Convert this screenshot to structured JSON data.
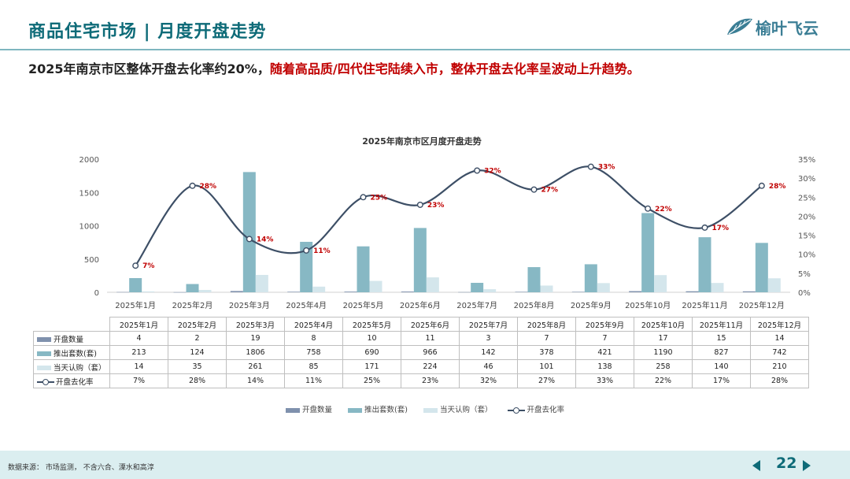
{
  "header": {
    "title": "商品住宅市场 | 月度开盘走势",
    "logo_text": "榆叶飞云",
    "subtitle_black": "2025年南京市区整体开盘去化率约20%，",
    "subtitle_red": "随着高品质/四代住宅陆续入市，整体开盘去化率呈波动上升趋势。"
  },
  "colors": {
    "title": "#0e6b78",
    "highlight": "#c00000",
    "open_count": "#7f91ad",
    "supply": "#87b8c4",
    "subscribed": "#d4e6ec",
    "rate_line": "#3d4f66",
    "rate_label": "#c00000"
  },
  "chart_data": {
    "type": "bar",
    "title": "2025年南京市区月度开盘走势",
    "categories": [
      "2025年1月",
      "2025年2月",
      "2025年3月",
      "2025年4月",
      "2025年5月",
      "2025年6月",
      "2025年7月",
      "2025年8月",
      "2025年9月",
      "2025年10月",
      "2025年11月",
      "2025年12月"
    ],
    "series": [
      {
        "name": "开盘数量",
        "type": "bar",
        "axis": "left",
        "values": [
          4,
          2,
          19,
          8,
          10,
          11,
          3,
          7,
          7,
          17,
          15,
          14
        ]
      },
      {
        "name": "推出套数(套)",
        "type": "bar",
        "axis": "left",
        "values": [
          213,
          124,
          1806,
          758,
          690,
          966,
          142,
          378,
          421,
          1190,
          827,
          742
        ]
      },
      {
        "name": "当天认购（套）",
        "type": "bar",
        "axis": "left",
        "values": [
          14,
          35,
          261,
          85,
          171,
          224,
          46,
          101,
          138,
          258,
          140,
          210
        ]
      },
      {
        "name": "开盘去化率",
        "type": "line",
        "axis": "right",
        "values": [
          7,
          28,
          14,
          11,
          25,
          23,
          32,
          27,
          33,
          22,
          17,
          28
        ],
        "labels": [
          "7%",
          "28%",
          "14%",
          "11%",
          "25%",
          "23%",
          "32%",
          "27%",
          "33%",
          "22%",
          "17%",
          "28%"
        ]
      }
    ],
    "y_left": {
      "ticks": [
        "0",
        "500",
        "1000",
        "1500",
        "2000"
      ],
      "ylim": [
        0,
        2000
      ]
    },
    "y_right": {
      "ticks": [
        "0%",
        "5%",
        "10%",
        "15%",
        "20%",
        "25%",
        "30%",
        "35%"
      ],
      "ylim": [
        0,
        35
      ]
    },
    "grid": false,
    "legend": "bottom"
  },
  "table": {
    "rows": [
      {
        "label": "开盘数量",
        "values": [
          "4",
          "2",
          "19",
          "8",
          "10",
          "11",
          "3",
          "7",
          "7",
          "17",
          "15",
          "14"
        ]
      },
      {
        "label": "推出套数(套)",
        "values": [
          "213",
          "124",
          "1806",
          "758",
          "690",
          "966",
          "142",
          "378",
          "421",
          "1190",
          "827",
          "742"
        ]
      },
      {
        "label": "当天认购（套）",
        "values": [
          "14",
          "35",
          "261",
          "85",
          "171",
          "224",
          "46",
          "101",
          "138",
          "258",
          "140",
          "210"
        ]
      },
      {
        "label": "开盘去化率",
        "values": [
          "7%",
          "28%",
          "14%",
          "11%",
          "25%",
          "23%",
          "32%",
          "27%",
          "33%",
          "22%",
          "17%",
          "28%"
        ]
      }
    ]
  },
  "legend": [
    "开盘数量",
    "推出套数(套)",
    "当天认购（套）",
    "开盘去化率"
  ],
  "footer": {
    "source": "数据来源： 市场监测， 不含六合、溧水和高淳",
    "page": "22"
  }
}
